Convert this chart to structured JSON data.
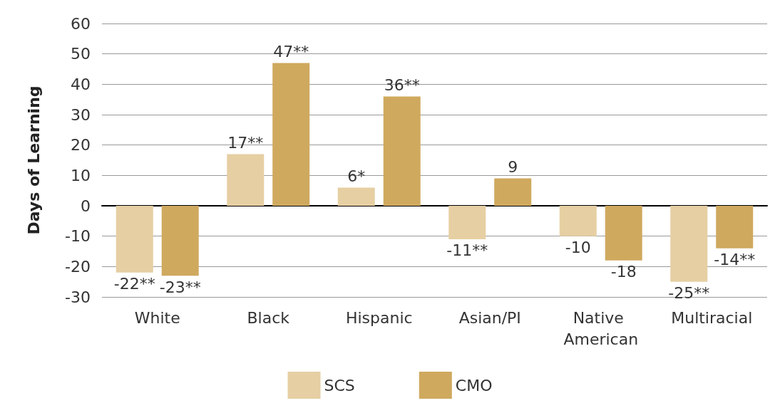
{
  "chart_data": {
    "type": "bar",
    "ylabel": "Days of Learning",
    "categories": [
      "White",
      "Black",
      "Hispanic",
      "Asian/PI",
      "Native American",
      "Multiracial"
    ],
    "series": [
      {
        "name": "SCS",
        "color": "#e6cfa3",
        "values": [
          -22,
          17,
          6,
          -11,
          -10,
          -25
        ],
        "value_labels": [
          "-22**",
          "17**",
          "6*",
          "-11**",
          "-10",
          "-25**"
        ]
      },
      {
        "name": "CMO",
        "color": "#cfa95e",
        "values": [
          -23,
          47,
          36,
          9,
          -18,
          -14
        ],
        "value_labels": [
          "-23**",
          "47**",
          "36**",
          "9",
          "-18",
          "-14**"
        ]
      }
    ],
    "ylim": [
      -30,
      60
    ],
    "yticks": [
      -30,
      -20,
      -10,
      0,
      10,
      20,
      30,
      40,
      50,
      60
    ],
    "grid": "y",
    "legend": "bottom"
  }
}
